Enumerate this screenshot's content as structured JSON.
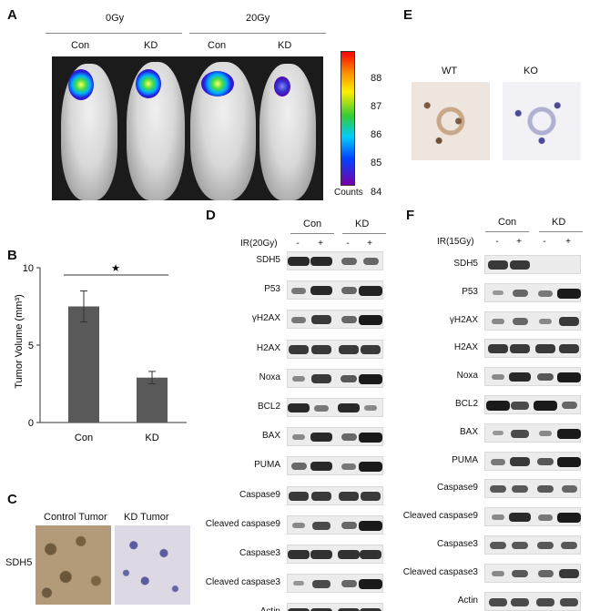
{
  "panel_labels": {
    "A": "A",
    "B": "B",
    "C": "C",
    "D": "D",
    "E": "E",
    "F": "F"
  },
  "panelA": {
    "doses": [
      "0Gy",
      "20Gy"
    ],
    "groups": [
      "Con",
      "KD",
      "Con",
      "KD"
    ],
    "colorbar_ticks": [
      "88",
      "87",
      "86",
      "85",
      "84"
    ],
    "colorbar_label": "Counts"
  },
  "panelB": {
    "ylabel": "Tumor Volume (mm³)",
    "yticks": [
      "10",
      "5",
      "0"
    ],
    "categories": [
      "Con",
      "KD"
    ],
    "star": "★"
  },
  "chart_data": {
    "type": "bar",
    "categories": [
      "Con",
      "KD"
    ],
    "values": [
      7.5,
      2.9
    ],
    "errors": [
      1.0,
      0.4
    ],
    "ylabel": "Tumor Volume (mm³)",
    "ylim": [
      0,
      10
    ],
    "yticks": [
      0,
      5,
      10
    ],
    "annotation": "★",
    "color": "#595959"
  },
  "panelC": {
    "columns": [
      "Control Tumor",
      "KD Tumor"
    ],
    "row_label": "SDH5"
  },
  "panelD": {
    "groups": [
      "Con",
      "KD"
    ],
    "treatment": "IR(20Gy)",
    "signs": [
      "-",
      "+",
      "-",
      "+"
    ],
    "rows": [
      "SDH5",
      "P53",
      "γH2AX",
      "H2AX",
      "Noxa",
      "BCL2",
      "BAX",
      "PUMA",
      "Caspase9",
      "Cleaved caspase9",
      "Caspase3",
      "Cleaved caspase3",
      "Actin"
    ]
  },
  "panelE": {
    "labels": [
      "WT",
      "KO"
    ]
  },
  "panelF": {
    "groups": [
      "Con",
      "KD"
    ],
    "treatment": "IR(15Gy)",
    "signs": [
      "-",
      "+",
      "-",
      "+"
    ],
    "rows": [
      "SDH5",
      "P53",
      "γH2AX",
      "H2AX",
      "Noxa",
      "BCL2",
      "BAX",
      "PUMA",
      "Caspase9",
      "Cleaved caspase9",
      "Caspase3",
      "Cleaved caspase3",
      "Actin"
    ]
  }
}
